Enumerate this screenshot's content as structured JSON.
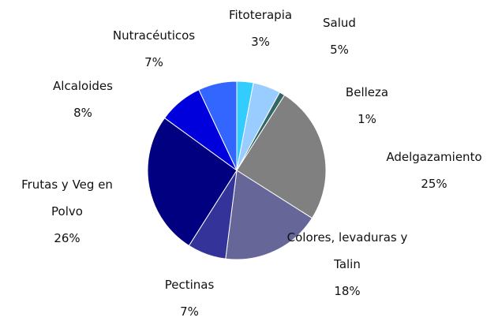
{
  "chart_data": {
    "type": "pie",
    "categories": [
      "Fitoterapia",
      "Salud",
      "Belleza",
      "Adelgazamiento",
      "Colores, levaduras y Talin",
      "Pectinas",
      "Frutas y Veg en Polvo",
      "Alcaloides",
      "Nutracéuticos"
    ],
    "values": [
      3,
      5,
      1,
      25,
      18,
      7,
      26,
      8,
      7
    ],
    "value_labels": [
      "3%",
      "5%",
      "1%",
      "25%",
      "18%",
      "7%",
      "26%",
      "8%",
      "7%"
    ],
    "colors": [
      "#33ccff",
      "#99ccff",
      "#336666",
      "#808080",
      "#666699",
      "#333399",
      "#000080",
      "#0000dd",
      "#3366ff"
    ]
  }
}
